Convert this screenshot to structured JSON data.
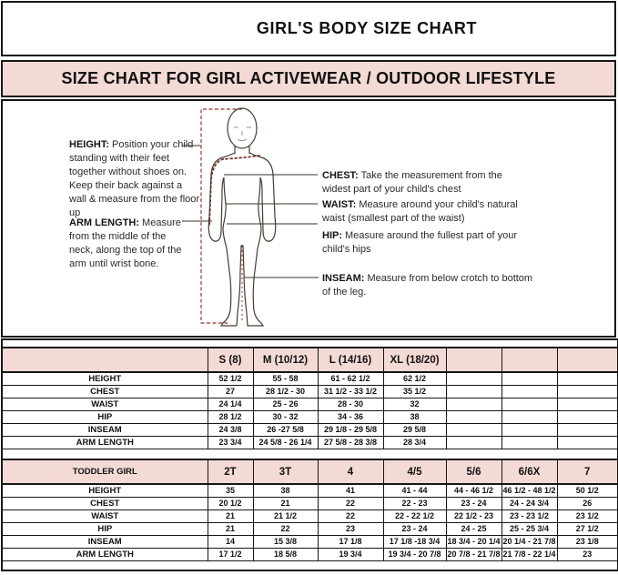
{
  "page": {
    "title": "GIRL'S BODY SIZE CHART",
    "banner": "SIZE CHART FOR GIRL ACTIVEWEAR / OUTDOOR LIFESTYLE"
  },
  "diagram": {
    "figure": "child-body-outline-front",
    "notes": {
      "height": {
        "label": "HEIGHT:",
        "text": " Position your child standing with their feet together without shoes on. Keep their back against a wall & measure from the floor up"
      },
      "arm": {
        "label": "ARM LENGTH:",
        "text": "  Measure from the middle of the neck, along the top of the arm until wrist bone."
      },
      "chest": {
        "label": "CHEST:",
        "text": " Take the measurement from the widest part of your child's chest"
      },
      "waist": {
        "label": "WAIST:",
        "text": " Measure around your child's natural waist (smallest part of the waist)"
      },
      "hip": {
        "label": "HIP:",
        "text": " Measure around the fullest part of your child's hips"
      },
      "inseam": {
        "label": "INSEAM:",
        "text": " Measure from below crotch to bottom of the leg."
      }
    }
  },
  "tables": [
    {
      "name": "girl-sizes",
      "header": [
        "",
        "S (8)",
        "M (10/12)",
        "L (14/16)",
        "XL (18/20)",
        "",
        "",
        ""
      ],
      "rows": [
        [
          "HEIGHT",
          "52 1/2",
          "55 - 58",
          "61 - 62 1/2",
          "62 1/2",
          "",
          "",
          ""
        ],
        [
          "CHEST",
          "27",
          "28 1/2 - 30",
          "31 1/2 - 33 1/2",
          "35 1/2",
          "",
          "",
          ""
        ],
        [
          "WAIST",
          "24 1/4",
          "25 - 26",
          "28 - 30",
          "32",
          "",
          "",
          ""
        ],
        [
          "HIP",
          "28 1/2",
          "30 - 32",
          "34 - 36",
          "38",
          "",
          "",
          ""
        ],
        [
          "INSEAM",
          "24 3/8",
          "26 -27 5/8",
          "29 1/8 - 29 5/8",
          "29 5/8",
          "",
          "",
          ""
        ],
        [
          "ARM LENGTH",
          "23 3/4",
          "24 5/8 - 26 1/4",
          "27 5/8 - 28 3/8",
          "28 3/4",
          "",
          "",
          ""
        ]
      ]
    },
    {
      "name": "toddler-girl-sizes",
      "header": [
        "TODDLER GIRL",
        "2T",
        "3T",
        "4",
        "4/5",
        "5/6",
        "6/6X",
        "7"
      ],
      "rows": [
        [
          "HEIGHT",
          "35",
          "38",
          "41",
          "41 - 44",
          "44 - 46 1/2",
          "46 1/2 - 48 1/2",
          "50 1/2"
        ],
        [
          "CHEST",
          "20 1/2",
          "21",
          "22",
          "22 - 23",
          "23 - 24",
          "24 - 24 3/4",
          "26"
        ],
        [
          "WAIST",
          "21",
          "21 1/2",
          "22",
          "22 - 22 1/2",
          "22 1/2 - 23",
          "23 - 23 1/2",
          "23 1/2"
        ],
        [
          "HIP",
          "21",
          "22",
          "23",
          "23 - 24",
          "24 - 25",
          "25 - 25 3/4",
          "27 1/2"
        ],
        [
          "INSEAM",
          "14",
          "15 3/8",
          "17 1/8",
          "17 1/8 -18 3/4",
          "18 3/4 - 20 1/4",
          "20 1/4 - 21 7/8",
          "23 1/8"
        ],
        [
          "ARM LENGTH",
          "17 1/2",
          "18 5/8",
          "19 3/4",
          "19 3/4 - 20 7/8",
          "20 7/8 - 21 7/8",
          "21 7/8 - 22 1/4",
          "23"
        ]
      ]
    }
  ],
  "colors": {
    "pink": "#f3dad5",
    "border": "#161616",
    "height_line": "#a2564c",
    "arm_dots": "#6f2b24",
    "pointer": "#3a322b"
  }
}
